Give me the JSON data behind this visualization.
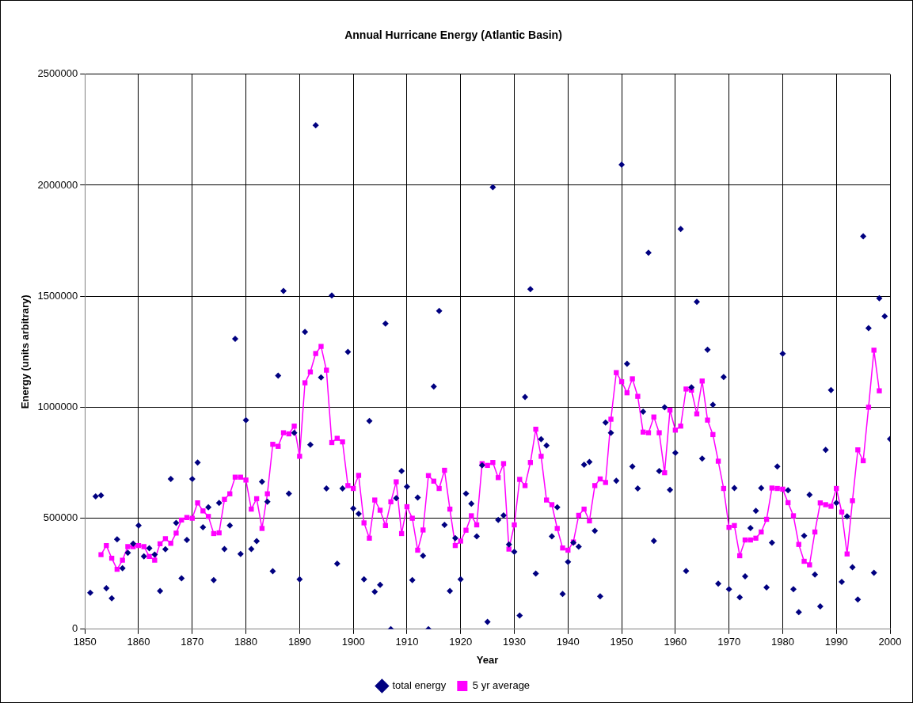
{
  "chart_data": {
    "type": "scatter",
    "title": "Annual Hurricane Energy (Atlantic Basin)",
    "xlabel": "Year",
    "ylabel": "Energy (units arbitrary)",
    "xlim": [
      1850,
      2000
    ],
    "xticks": [
      1850,
      1860,
      1870,
      1880,
      1890,
      1900,
      1910,
      1920,
      1930,
      1940,
      1950,
      1960,
      1970,
      1980,
      1990,
      2000
    ],
    "ylim": [
      0,
      2500000
    ],
    "yticks": [
      0,
      500000,
      1000000,
      1500000,
      2000000,
      2500000
    ],
    "grid": true,
    "legend": "bottom",
    "series": [
      {
        "name": "total energy",
        "type": "scatter",
        "marker": "diamond",
        "color": "#000080",
        "x": [
          1851,
          1852,
          1853,
          1854,
          1855,
          1856,
          1857,
          1858,
          1859,
          1860,
          1861,
          1862,
          1863,
          1864,
          1865,
          1866,
          1867,
          1868,
          1869,
          1870,
          1871,
          1872,
          1873,
          1874,
          1875,
          1876,
          1877,
          1878,
          1879,
          1880,
          1881,
          1882,
          1883,
          1884,
          1885,
          1886,
          1887,
          1888,
          1889,
          1890,
          1891,
          1892,
          1893,
          1894,
          1895,
          1896,
          1897,
          1898,
          1899,
          1900,
          1901,
          1902,
          1903,
          1904,
          1905,
          1906,
          1907,
          1908,
          1909,
          1910,
          1911,
          1912,
          1913,
          1914,
          1915,
          1916,
          1917,
          1918,
          1919,
          1920,
          1921,
          1922,
          1923,
          1924,
          1925,
          1926,
          1927,
          1928,
          1929,
          1930,
          1931,
          1932,
          1933,
          1934,
          1935,
          1936,
          1937,
          1938,
          1939,
          1940,
          1941,
          1942,
          1943,
          1944,
          1945,
          1946,
          1947,
          1948,
          1949,
          1950,
          1951,
          1952,
          1953,
          1954,
          1955,
          1956,
          1957,
          1958,
          1959,
          1960,
          1961,
          1962,
          1963,
          1964,
          1965,
          1966,
          1967,
          1968,
          1969,
          1970,
          1971,
          1972,
          1973,
          1974,
          1975,
          1976,
          1977,
          1978,
          1979,
          1980,
          1981,
          1982,
          1983,
          1984,
          1985,
          1986,
          1987,
          1988,
          1989,
          1990,
          1991,
          1992,
          1993,
          1994,
          1995,
          1996,
          1997,
          1998,
          1999,
          2000
        ],
        "values": [
          164000,
          598000,
          603000,
          185000,
          139000,
          405000,
          275000,
          344000,
          385000,
          467000,
          328000,
          365000,
          336000,
          172000,
          360000,
          677000,
          479000,
          229000,
          402000,
          677000,
          751000,
          459000,
          549000,
          221000,
          569000,
          361000,
          467000,
          1308000,
          339000,
          942000,
          361000,
          397000,
          664000,
          574000,
          261000,
          1142000,
          1524000,
          611000,
          885000,
          225000,
          1339000,
          831000,
          2270000,
          1134000,
          634000,
          1503000,
          295000,
          634000,
          1249000,
          544000,
          520000,
          225000,
          938000,
          169000,
          200000,
          1377000,
          0,
          590000,
          713000,
          642000,
          221000,
          593000,
          331000,
          0,
          1093000,
          1434000,
          470000,
          172000,
          410000,
          225000,
          611000,
          565000,
          418000,
          738000,
          33000,
          1991000,
          492000,
          513000,
          382000,
          349000,
          62000,
          1046000,
          1532000,
          251000,
          856000,
          828000,
          418000,
          549000,
          159000,
          303000,
          390000,
          372000,
          741000,
          754000,
          443000,
          148000,
          931000,
          885000,
          669000,
          2093000,
          1196000,
          733000,
          634000,
          980000,
          1696000,
          398000,
          713000,
          1000000,
          628000,
          795000,
          1803000,
          262000,
          1090000,
          1475000,
          769000,
          1259000,
          1011000,
          205000,
          1136000,
          180000,
          636000,
          144000,
          238000,
          456000,
          533000,
          636000,
          188000,
          390000,
          733000,
          1241000,
          626000,
          180000,
          77000,
          421000,
          606000,
          246000,
          103000,
          808000,
          1077000,
          569000,
          213000,
          508000,
          279000,
          134000,
          1770000,
          1356000,
          254000,
          1491000,
          1410000,
          857000
        ]
      },
      {
        "name": "5 yr average",
        "type": "line",
        "marker": "square",
        "color": "#ff00ff",
        "x": [
          1853,
          1854,
          1855,
          1856,
          1857,
          1858,
          1859,
          1860,
          1861,
          1862,
          1863,
          1864,
          1865,
          1866,
          1867,
          1868,
          1869,
          1870,
          1871,
          1872,
          1873,
          1874,
          1875,
          1876,
          1877,
          1878,
          1879,
          1880,
          1881,
          1882,
          1883,
          1884,
          1885,
          1886,
          1887,
          1888,
          1889,
          1890,
          1891,
          1892,
          1893,
          1894,
          1895,
          1896,
          1897,
          1898,
          1899,
          1900,
          1901,
          1902,
          1903,
          1904,
          1905,
          1906,
          1907,
          1908,
          1909,
          1910,
          1911,
          1912,
          1913,
          1914,
          1915,
          1916,
          1917,
          1918,
          1919,
          1920,
          1921,
          1922,
          1923,
          1924,
          1925,
          1926,
          1927,
          1928,
          1929,
          1930,
          1931,
          1932,
          1933,
          1934,
          1935,
          1936,
          1937,
          1938,
          1939,
          1940,
          1941,
          1942,
          1943,
          1944,
          1945,
          1946,
          1947,
          1948,
          1949,
          1950,
          1951,
          1952,
          1953,
          1954,
          1955,
          1956,
          1957,
          1958,
          1959,
          1960,
          1961,
          1962,
          1963,
          1964,
          1965,
          1966,
          1967,
          1968,
          1969,
          1970,
          1971,
          1972,
          1973,
          1974,
          1975,
          1976,
          1977,
          1978,
          1979,
          1980,
          1981,
          1982,
          1983,
          1984,
          1985,
          1986,
          1987,
          1988,
          1989,
          1990,
          1991,
          1992,
          1993,
          1994,
          1995,
          1996,
          1997,
          1998
        ],
        "values": [
          336000,
          377000,
          320000,
          270000,
          311000,
          372000,
          372000,
          377000,
          372000,
          328000,
          311000,
          385000,
          408000,
          387000,
          433000,
          492000,
          503000,
          500000,
          569000,
          533000,
          508000,
          431000,
          434000,
          585000,
          610000,
          685000,
          685000,
          672000,
          541000,
          588000,
          454000,
          610000,
          833000,
          824000,
          885000,
          880000,
          915000,
          779000,
          1110000,
          1159000,
          1242000,
          1274000,
          1167000,
          841000,
          860000,
          844000,
          647000,
          634000,
          693000,
          479000,
          410000,
          582000,
          536000,
          467000,
          574000,
          664000,
          431000,
          552000,
          500000,
          356000,
          447000,
          692000,
          667000,
          634000,
          716000,
          541000,
          377000,
          397000,
          446000,
          511000,
          470000,
          746000,
          738000,
          751000,
          683000,
          746000,
          361000,
          470000,
          675000,
          647000,
          751000,
          901000,
          779000,
          582000,
          561000,
          454000,
          366000,
          356000,
          393000,
          513000,
          541000,
          488000,
          647000,
          677000,
          661000,
          946000,
          1156000,
          1115000,
          1065000,
          1128000,
          1049000,
          888000,
          885000,
          956000,
          885000,
          705000,
          987000,
          897000,
          915000,
          1082000,
          1077000,
          970000,
          1118000,
          942000,
          877000,
          757000,
          634000,
          459000,
          467000,
          331000,
          402000,
          402000,
          410000,
          438000,
          495000,
          636000,
          634000,
          631000,
          570000,
          511000,
          382000,
          306000,
          290000,
          438000,
          569000,
          561000,
          554000,
          634000,
          528000,
          339000,
          579000,
          808000,
          759000,
          1000000,
          1257000,
          1074000
        ]
      }
    ]
  }
}
